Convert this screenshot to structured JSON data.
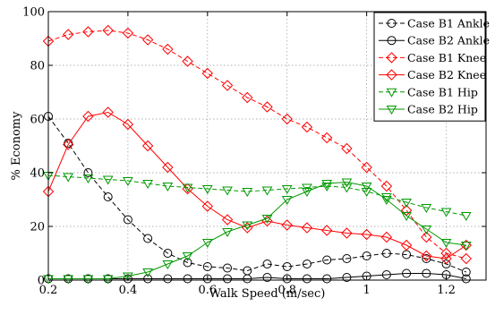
{
  "chart_data": {
    "type": "line",
    "title": "",
    "xlabel": "Walk Speed (m/sec)",
    "ylabel": "% Economy",
    "xlim": [
      0.2,
      1.3
    ],
    "ylim": [
      0,
      100
    ],
    "x_ticks": [
      0.2,
      0.4,
      0.6,
      0.8,
      1,
      1.2
    ],
    "x_tick_labels": [
      "0.2",
      "0.4",
      "0.6",
      "0.8",
      "1",
      "1.2"
    ],
    "y_ticks": [
      0,
      20,
      40,
      60,
      80,
      100
    ],
    "y_tick_labels": [
      "0",
      "20",
      "40",
      "60",
      "80",
      "100"
    ],
    "grid": true,
    "legend_position": "top-right",
    "x": [
      0.2,
      0.25,
      0.3,
      0.35,
      0.4,
      0.45,
      0.5,
      0.55,
      0.6,
      0.65,
      0.7,
      0.75,
      0.8,
      0.85,
      0.9,
      0.95,
      1.0,
      1.05,
      1.1,
      1.15,
      1.2,
      1.25
    ],
    "series": [
      {
        "name": "Case B1 Ankle",
        "color": "#000000",
        "dash": true,
        "marker": "circle",
        "values": [
          61,
          51,
          40,
          31,
          22.5,
          15.5,
          10,
          6.5,
          5,
          4.5,
          3.5,
          6,
          5,
          6,
          7.5,
          8,
          9,
          10,
          9.5,
          8,
          6,
          3
        ]
      },
      {
        "name": "Case B2 Ankle",
        "color": "#000000",
        "dash": false,
        "marker": "circle",
        "values": [
          0.5,
          0.5,
          0.5,
          0.5,
          0.5,
          0.5,
          0.5,
          0.5,
          0.5,
          0.5,
          0.5,
          1,
          0.5,
          0.5,
          0.5,
          1,
          1.5,
          2,
          2.5,
          2.5,
          2,
          0.5
        ]
      },
      {
        "name": "Case B1 Knee",
        "color": "#ff0000",
        "dash": true,
        "marker": "diamond",
        "values": [
          89,
          91.5,
          92.5,
          93,
          92,
          89.5,
          86,
          81.5,
          77,
          72.5,
          68,
          64.5,
          60,
          57,
          53,
          49,
          42,
          35,
          26,
          16,
          10,
          8
        ]
      },
      {
        "name": "Case B2 Knee",
        "color": "#ff0000",
        "dash": false,
        "marker": "diamond",
        "values": [
          33,
          50.5,
          61,
          62.5,
          58,
          50,
          42,
          34,
          27.5,
          22.5,
          19.5,
          22,
          20.5,
          19.5,
          18.5,
          17.5,
          17,
          16,
          13,
          9,
          8,
          13
        ]
      },
      {
        "name": "Case B1 Hip",
        "color": "#009900",
        "dash": true,
        "marker": "triangle-down",
        "values": [
          39,
          38.5,
          38,
          37.5,
          37,
          36,
          35,
          34.5,
          34,
          33.5,
          33,
          33.5,
          34,
          34.5,
          35,
          34.5,
          33,
          31,
          29,
          27,
          25.5,
          24
        ]
      },
      {
        "name": "Case B2 Hip",
        "color": "#009900",
        "dash": false,
        "marker": "triangle-down",
        "values": [
          0.5,
          0.5,
          0.5,
          0.5,
          1.5,
          3,
          6,
          9,
          14,
          18,
          20.5,
          23,
          30,
          33,
          36,
          36.5,
          35,
          30,
          24,
          19,
          14,
          13
        ]
      }
    ]
  }
}
